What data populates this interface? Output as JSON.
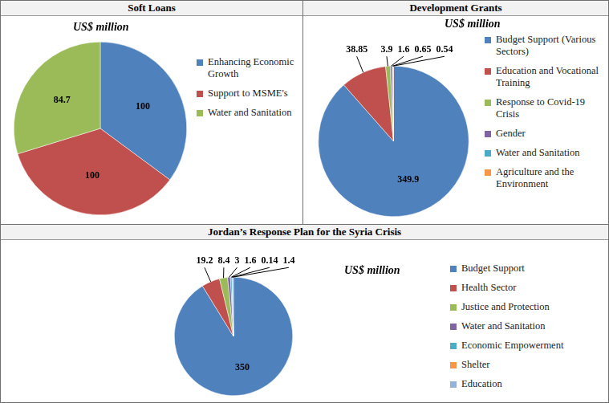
{
  "chart_data": [
    {
      "type": "pie",
      "title": "Soft Loans",
      "subtitle": "US$ million",
      "categories": [
        "Enhancing Economic Growth",
        "Support to MSME's",
        "Water and Sanitation"
      ],
      "values": [
        100,
        100,
        84.7
      ],
      "colors": [
        "#4f81bd",
        "#c0504d",
        "#9bbb59"
      ],
      "data_labels": true,
      "legend": "right"
    },
    {
      "type": "pie",
      "title": "Development Grants",
      "subtitle": "US$ million",
      "categories": [
        "Budget Support (Various Sectors)",
        "Education and Vocational Training",
        "Response to Covid-19 Crisis",
        "Gender",
        "Water and Sanitation",
        "Agriculture and the Environment"
      ],
      "values": [
        349.9,
        38.85,
        3.9,
        1.6,
        0.65,
        0.54
      ],
      "colors": [
        "#4f81bd",
        "#c0504d",
        "#9bbb59",
        "#8064a2",
        "#4bacc6",
        "#f79646"
      ],
      "data_labels": true,
      "legend": "right"
    },
    {
      "type": "pie",
      "title": "Jordan’s Response Plan for the Syria Crisis",
      "subtitle": "US$ million",
      "categories": [
        "Budget Support",
        "Health Sector",
        "Justice and Protection",
        "Water and Sanitation",
        "Economic Empowerment",
        "Shelter",
        "Education"
      ],
      "values": [
        350,
        19.2,
        8.4,
        3,
        1.6,
        0.14,
        1.4
      ],
      "colors": [
        "#4f81bd",
        "#c0504d",
        "#9bbb59",
        "#8064a2",
        "#4bacc6",
        "#f79646",
        "#95b3d7"
      ],
      "data_labels": true,
      "legend": "right"
    }
  ]
}
